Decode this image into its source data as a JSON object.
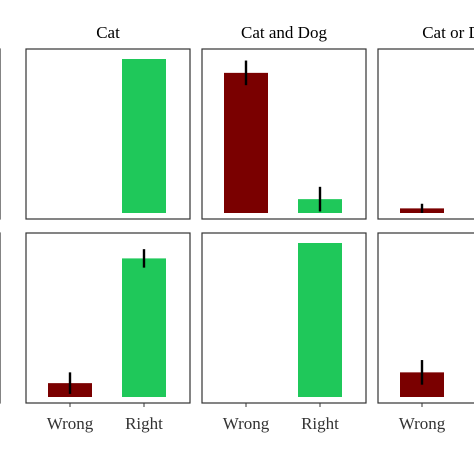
{
  "chart_data": {
    "type": "bar",
    "layout": "faceted grid, 2 rows x 4 columns, partially cropped at left and right",
    "categories": [
      "Wrong",
      "Right"
    ],
    "colors": {
      "Wrong": "#7a0000",
      "Right": "#1fc85a"
    },
    "ylim": [
      0,
      1
    ],
    "grid": false,
    "panels": [
      {
        "column_title": "",
        "row": 1,
        "values": [
          null,
          null
        ],
        "errors": [
          null,
          null
        ]
      },
      {
        "column_title": "Cat",
        "row": 1,
        "values": [
          0,
          1.0
        ],
        "errors": [
          0,
          0
        ]
      },
      {
        "column_title": "Cat and Dog",
        "row": 1,
        "values": [
          0.91,
          0.09
        ],
        "errors": [
          0.08,
          0.08
        ]
      },
      {
        "column_title": "Cat or Dog",
        "row": 1,
        "values": [
          0.03,
          null
        ],
        "errors": [
          0.03,
          null
        ]
      },
      {
        "column_title": "",
        "row": 2,
        "values": [
          null,
          null
        ],
        "errors": [
          null,
          null
        ]
      },
      {
        "column_title": "Cat",
        "row": 2,
        "values": [
          0.09,
          0.9
        ],
        "errors": [
          0.07,
          0.06
        ]
      },
      {
        "column_title": "Cat and Dog",
        "row": 2,
        "values": [
          0,
          1.0
        ],
        "errors": [
          0,
          0
        ]
      },
      {
        "column_title": "Cat or Dog",
        "row": 2,
        "values": [
          0.16,
          null
        ],
        "errors": [
          0.08,
          null
        ]
      }
    ],
    "x_tick_labels": [
      {
        "column": "Cat",
        "labels": [
          "Wrong",
          "Right"
        ]
      },
      {
        "column": "Cat and Dog",
        "labels": [
          "Wrong",
          "Right"
        ]
      },
      {
        "column": "Cat or Dog",
        "labels": [
          "Wrong"
        ]
      }
    ]
  }
}
